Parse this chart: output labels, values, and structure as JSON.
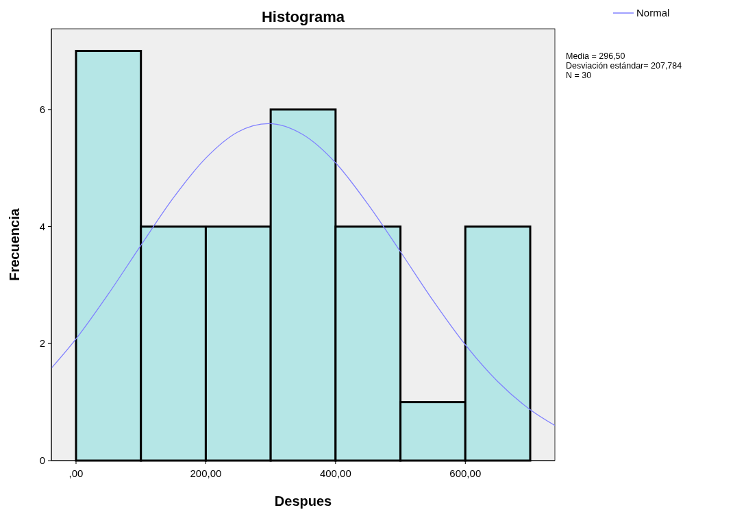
{
  "chart_data": {
    "type": "histogram",
    "title": "Histograma",
    "xlabel": "Despues",
    "ylabel": "Frecuencia",
    "bins": [
      0,
      100,
      200,
      300,
      400,
      500,
      600,
      700
    ],
    "values": [
      7,
      4,
      4,
      6,
      4,
      1,
      4
    ],
    "color": "#b5e6e6",
    "series": [
      {
        "type": "line",
        "name": "Normal",
        "color": "#8080ff",
        "x": [
          -38,
          0,
          50,
          100,
          150,
          200,
          250,
          296.5,
          350,
          400,
          450,
          500,
          550,
          600,
          650,
          700,
          738
        ],
        "values": [
          1.58,
          2.08,
          2.85,
          3.68,
          4.49,
          5.17,
          5.62,
          5.76,
          5.57,
          5.09,
          4.38,
          3.57,
          2.74,
          1.98,
          1.35,
          0.87,
          0.6
        ]
      }
    ],
    "xlim": [
      -38,
      738
    ],
    "xticks": [
      {
        "value": 0,
        "label": ",00"
      },
      {
        "value": 200,
        "label": "200,00"
      },
      {
        "value": 400,
        "label": "400,00"
      },
      {
        "value": 600,
        "label": "600,00"
      }
    ],
    "ylim": [
      0,
      7.38
    ],
    "yticks": [
      0,
      2,
      4,
      6
    ],
    "legend": "top right",
    "annotations": [
      "Media = 296,50",
      "Desviación estándar= 207,784",
      "N = 30"
    ]
  }
}
